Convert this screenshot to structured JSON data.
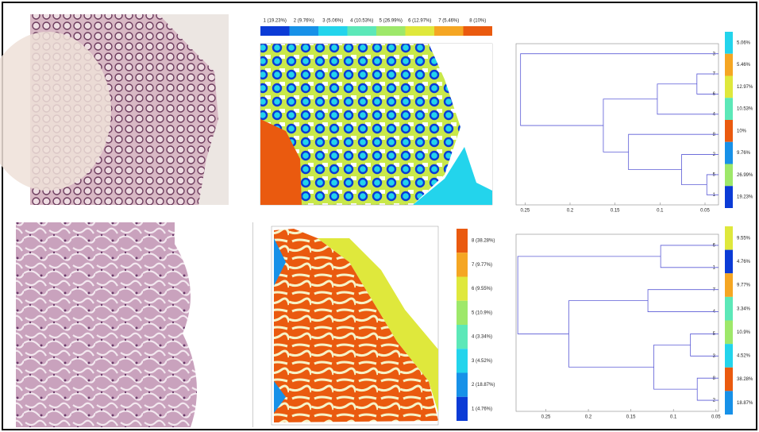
{
  "top": {
    "legend": [
      {
        "label": "1 (19.23%)",
        "color": "#0b3bd6"
      },
      {
        "label": "2 (9.76%)",
        "color": "#1791e8"
      },
      {
        "label": "3 (5.06%)",
        "color": "#23d4ec"
      },
      {
        "label": "4 (10.53%)",
        "color": "#5ce8b8"
      },
      {
        "label": "5 (26.99%)",
        "color": "#9ee86a"
      },
      {
        "label": "6 (12.97%)",
        "color": "#dfe83c"
      },
      {
        "label": "7 (5.46%)",
        "color": "#f5a623"
      },
      {
        "label": "8 (10%)",
        "color": "#ea5a0f"
      }
    ],
    "dendrogram": {
      "xlim": [
        0.26,
        0.035
      ],
      "xticks": [
        0.25,
        0.2,
        0.15,
        0.1,
        0.05
      ],
      "leaves": [
        {
          "label": "3",
          "share": "5.06%",
          "color": "#23d4ec"
        },
        {
          "label": "7",
          "share": "5.46%",
          "color": "#f5a623"
        },
        {
          "label": "6",
          "share": "12.97%",
          "color": "#dfe83c"
        },
        {
          "label": "4",
          "share": "10.53%",
          "color": "#5ce8b8"
        },
        {
          "label": "8",
          "share": "10%",
          "color": "#ea5a0f"
        },
        {
          "label": "2",
          "share": "9.76%",
          "color": "#1791e8"
        },
        {
          "label": "5",
          "share": "26.99%",
          "color": "#9ee86a"
        },
        {
          "label": "1",
          "share": "19.23%",
          "color": "#0b3bd6"
        }
      ],
      "merges": [
        [
          1,
          2,
          0.059
        ],
        [
          8,
          3,
          0.103
        ],
        [
          6,
          7,
          0.048
        ],
        [
          5,
          10,
          0.076
        ],
        [
          4,
          11,
          0.135
        ],
        [
          9,
          12,
          0.163
        ],
        [
          0,
          13,
          0.255
        ]
      ]
    }
  },
  "bottom": {
    "legend": [
      {
        "label": "8 (38.28%)",
        "color": "#ea5a0f"
      },
      {
        "label": "7 (9.77%)",
        "color": "#f5a623"
      },
      {
        "label": "6 (9.55%)",
        "color": "#dfe83c"
      },
      {
        "label": "5 (10.9%)",
        "color": "#9ee86a"
      },
      {
        "label": "4 (3.34%)",
        "color": "#5ce8b8"
      },
      {
        "label": "3 (4.52%)",
        "color": "#23d4ec"
      },
      {
        "label": "2 (18.87%)",
        "color": "#1791e8"
      },
      {
        "label": "1 (4.76%)",
        "color": "#0b3bd6"
      }
    ],
    "dendrogram": {
      "xlim": [
        0.285,
        0.047
      ],
      "xticks": [
        0.25,
        0.2,
        0.15,
        0.1,
        0.05
      ],
      "leaves": [
        {
          "label": "6",
          "share": "9.55%",
          "color": "#dfe83c"
        },
        {
          "label": "1",
          "share": "4.76%",
          "color": "#0b3bd6"
        },
        {
          "label": "7",
          "share": "9.77%",
          "color": "#f5a623"
        },
        {
          "label": "4",
          "share": "3.34%",
          "color": "#5ce8b8"
        },
        {
          "label": "5",
          "share": "10.9%",
          "color": "#9ee86a"
        },
        {
          "label": "3",
          "share": "4.52%",
          "color": "#23d4ec"
        },
        {
          "label": "8",
          "share": "38.28%",
          "color": "#ea5a0f"
        },
        {
          "label": "2",
          "share": "18.87%",
          "color": "#1791e8"
        }
      ],
      "merges": [
        [
          0,
          1,
          0.115
        ],
        [
          2,
          3,
          0.13
        ],
        [
          4,
          5,
          0.08
        ],
        [
          6,
          7,
          0.072
        ],
        [
          10,
          11,
          0.123
        ],
        [
          9,
          12,
          0.223
        ],
        [
          8,
          13,
          0.283
        ]
      ]
    }
  }
}
